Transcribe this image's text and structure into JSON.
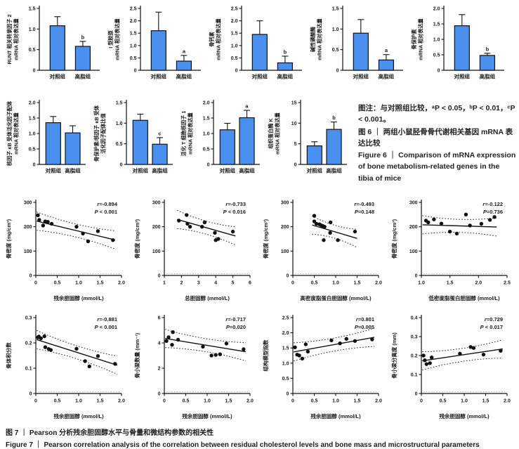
{
  "figure6": {
    "note": "图注：与对照组比较，ᵃP < 0.05，ᵇP < 0.01，ᶜP < 0.001。",
    "caption_zh": "图 6 ｜ 两组小鼠胫骨骨代谢相关基因 mRNA 表达比较",
    "caption_en": "Figure 6 ｜ Comparison of mRNA expression of bone metabolism-related genes in the tibia of mice"
  },
  "figure7": {
    "caption_zh": "图 7 ｜ Pearson 分析残余胆固醇水平与骨量和微结构参数的相关性",
    "caption_en": "Figure 7 ｜ Pearson correlation analysis of the correlation between residual cholesterol levels and bone mass and microstructural parameters"
  },
  "colors": {
    "bar_fill": "#4a90ee",
    "bar_stroke": "#111111",
    "text": "#1a1a1a",
    "line": "#111111"
  },
  "chart_data": [
    {
      "type": "bar",
      "figure": "图6",
      "ylabel_lines": [
        "RUNT 相关转录因子 2",
        "mRNA 相对表达量"
      ],
      "categories": [
        "对照组",
        "高脂组"
      ],
      "values": [
        1.08,
        0.58
      ],
      "errors": [
        0.22,
        0.12
      ],
      "sig": [
        "",
        "b"
      ],
      "ylim": [
        0,
        1.5
      ],
      "yticks": [
        "0",
        "0.5",
        "1.0",
        "1.5"
      ]
    },
    {
      "type": "bar",
      "figure": "图6",
      "ylabel_lines": [
        "I 型胶原",
        "mRNA 相对表达量"
      ],
      "categories": [
        "对照组",
        "高脂组"
      ],
      "values": [
        1.6,
        0.37
      ],
      "errors": [
        0.75,
        0.23
      ],
      "sig": [
        "",
        "a"
      ],
      "ylim": [
        0,
        2.5
      ],
      "yticks": [
        "0",
        "0.5",
        "1.0",
        "1.5",
        "2.0",
        "2.5"
      ]
    },
    {
      "type": "bar",
      "figure": "图6",
      "ylabel_lines": [
        "骨钙素",
        "mRNA 相对表达量"
      ],
      "categories": [
        "对照组",
        "高脂组"
      ],
      "values": [
        1.45,
        0.3
      ],
      "errors": [
        0.55,
        0.27
      ],
      "sig": [
        "",
        "b"
      ],
      "ylim": [
        0,
        2.5
      ],
      "yticks": [
        "0",
        "0.5",
        "1.0",
        "1.5",
        "2.0",
        "2.5"
      ]
    },
    {
      "type": "bar",
      "figure": "图6",
      "ylabel_lines": [
        "碱性磷酸酶",
        "mRNA 相对表达量"
      ],
      "categories": [
        "对照组",
        "高脂组"
      ],
      "values": [
        0.9,
        0.25
      ],
      "errors": [
        0.33,
        0.13
      ],
      "sig": [
        "",
        "a"
      ],
      "ylim": [
        0,
        1.5
      ],
      "yticks": [
        "0",
        "0.5",
        "1.0",
        "1.5"
      ]
    },
    {
      "type": "bar",
      "figure": "图6",
      "ylabel_lines": [
        "骨保护素",
        "mRNA 相对表达量"
      ],
      "categories": [
        "对照组",
        "高脂组"
      ],
      "values": [
        1.44,
        0.48
      ],
      "errors": [
        0.36,
        0.07
      ],
      "sig": [
        "",
        "b"
      ],
      "ylim": [
        0,
        2.0
      ],
      "yticks": [
        "0",
        "0.5",
        "1.0",
        "1.5",
        "2.0"
      ]
    },
    {
      "type": "bar",
      "figure": "图6",
      "ylabel_lines": [
        "核因子 κB 受体活化因子配体",
        "mRNA 相对表达量"
      ],
      "categories": [
        "对照组",
        "高脂组"
      ],
      "values": [
        1.35,
        1.02
      ],
      "errors": [
        0.2,
        0.23
      ],
      "sig": [
        "",
        ""
      ],
      "ylim": [
        0,
        2.0
      ],
      "yticks": [
        "0",
        "0.5",
        "1.0",
        "1.5",
        "2.0"
      ]
    },
    {
      "type": "bar",
      "figure": "图6",
      "ylabel_lines": [
        "骨保护素/核因子 κB 受体",
        "活化因子配体比值"
      ],
      "categories": [
        "对照组",
        "高脂组"
      ],
      "values": [
        1.07,
        0.49
      ],
      "errors": [
        0.15,
        0.16
      ],
      "sig": [
        "",
        "c"
      ],
      "ylim": [
        0,
        1.5
      ],
      "yticks": [
        "0",
        "0.5",
        "1.0",
        "1.5"
      ]
    },
    {
      "type": "bar",
      "figure": "图6",
      "ylabel_lines": [
        "活化 T 细胞核因子 1",
        "mRNA 相对表达量"
      ],
      "categories": [
        "对照组",
        "高脂组"
      ],
      "values": [
        1.12,
        1.51
      ],
      "errors": [
        0.21,
        0.24
      ],
      "sig": [
        "",
        "a"
      ],
      "ylim": [
        0,
        2.0
      ],
      "yticks": [
        "0",
        "0.5",
        "1.0",
        "1.5",
        "2.0"
      ]
    },
    {
      "type": "bar",
      "figure": "图6",
      "ylabel_lines": [
        "组织蛋白酶 K",
        "mRNA 相对表达量"
      ],
      "categories": [
        "对照组",
        "高脂组"
      ],
      "values": [
        4.5,
        8.5
      ],
      "errors": [
        1.0,
        1.8
      ],
      "sig": [
        "",
        "b"
      ],
      "ylim": [
        0,
        15
      ],
      "yticks": [
        "0",
        "5",
        "10",
        "15"
      ]
    },
    {
      "type": "scatter",
      "figure": "图7",
      "ylabel": "骨密度 (mg/cm³)",
      "xlabel": "残余胆固醇 (mmol/L)",
      "r_label": "r=-0.894",
      "p_label": "P < 0.001",
      "xlim": [
        0,
        2.0
      ],
      "ylim": [
        0,
        300
      ],
      "xticks": [
        "0",
        "0.5",
        "1.0",
        "1.5",
        "2.0"
      ],
      "yticks": [
        "0",
        "100",
        "200",
        "300"
      ],
      "points": [
        [
          0.05,
          247
        ],
        [
          0.08,
          228
        ],
        [
          0.17,
          205
        ],
        [
          0.22,
          222
        ],
        [
          0.28,
          220
        ],
        [
          0.37,
          212
        ],
        [
          0.95,
          200
        ],
        [
          1.1,
          172
        ],
        [
          1.22,
          140
        ],
        [
          1.45,
          182
        ],
        [
          1.8,
          145
        ]
      ],
      "line": {
        "x": [
          0.02,
          1.85
        ],
        "y": [
          223,
          146
        ]
      }
    },
    {
      "type": "scatter",
      "figure": "图7",
      "ylabel": "骨密度 (mg/cm³)",
      "xlabel": "总胆固醇 (mmol/L)",
      "r_label": "r=-0.733",
      "p_label": "P < 0.016",
      "xlim": [
        1,
        6
      ],
      "ylim": [
        0,
        300
      ],
      "xticks": [
        "1",
        "2",
        "3",
        "4",
        "5",
        "6"
      ],
      "yticks": [
        "0",
        "100",
        "200",
        "300"
      ],
      "points": [
        [
          1.85,
          225
        ],
        [
          2.3,
          248
        ],
        [
          2.35,
          212
        ],
        [
          2.5,
          200
        ],
        [
          3.2,
          200
        ],
        [
          3.35,
          218
        ],
        [
          3.95,
          175
        ],
        [
          4.0,
          145
        ],
        [
          4.15,
          150
        ],
        [
          5.0,
          180
        ]
      ],
      "line": {
        "x": [
          1.75,
          5.15
        ],
        "y": [
          230,
          162
        ]
      }
    },
    {
      "type": "scatter",
      "figure": "图7",
      "ylabel": "骨密度 (mg/cm³)",
      "xlabel": "高密度脂蛋白胆固醇 (mmol/L)",
      "r_label": "r=-0.493",
      "p_label": "P=0.148",
      "xlim": [
        0,
        2.0
      ],
      "ylim": [
        0,
        300
      ],
      "xticks": [
        "0",
        "0.5",
        "1.0",
        "1.5",
        "2.0"
      ],
      "yticks": [
        "0",
        "100",
        "200",
        "300"
      ],
      "points": [
        [
          0.5,
          245
        ],
        [
          0.5,
          222
        ],
        [
          0.55,
          212
        ],
        [
          0.62,
          210
        ],
        [
          0.66,
          206
        ],
        [
          0.7,
          203
        ],
        [
          0.74,
          200
        ],
        [
          0.88,
          218
        ],
        [
          0.87,
          175
        ],
        [
          0.72,
          145
        ],
        [
          1.05,
          145
        ],
        [
          1.45,
          180
        ]
      ],
      "line": {
        "x": [
          0.45,
          1.5
        ],
        "y": [
          207,
          152
        ]
      }
    },
    {
      "type": "scatter",
      "figure": "图7",
      "ylabel": "骨密度 (mg/cm³)",
      "xlabel": "低密度脂蛋白胆固醇 (mmol/L)",
      "r_label": "r=-0.122",
      "p_label": "P=0.736",
      "xlim": [
        1.0,
        2.5
      ],
      "ylim": [
        0,
        300
      ],
      "xticks": [
        "1.0",
        "1.5",
        "2.0",
        "2.5"
      ],
      "yticks": [
        "0",
        "100",
        "200",
        "300"
      ],
      "points": [
        [
          1.08,
          225
        ],
        [
          1.12,
          218
        ],
        [
          1.22,
          230
        ],
        [
          1.35,
          213
        ],
        [
          1.5,
          180
        ],
        [
          1.62,
          172
        ],
        [
          1.78,
          250
        ],
        [
          1.85,
          205
        ],
        [
          2.05,
          212
        ],
        [
          2.2,
          228
        ],
        [
          2.28,
          240
        ]
      ],
      "line": {
        "x": [
          1.02,
          2.32
        ],
        "y": [
          208,
          199
        ]
      }
    },
    {
      "type": "scatter",
      "figure": "图7",
      "ylabel": "骨体积分数",
      "xlabel": "残余胆固醇 (mmol/L)",
      "r_label": "r=-0.881",
      "p_label": "P < 0.001",
      "xlim": [
        0,
        2.0
      ],
      "ylim": [
        0,
        0.3
      ],
      "xticks": [
        "0",
        "0.5",
        "1.0",
        "1.5",
        "2.0"
      ],
      "yticks": [
        "0",
        "0.1",
        "0.2",
        "0.3"
      ],
      "points": [
        [
          0.05,
          0.222
        ],
        [
          0.07,
          0.225
        ],
        [
          0.12,
          0.218
        ],
        [
          0.2,
          0.226
        ],
        [
          0.22,
          0.183
        ],
        [
          0.3,
          0.176
        ],
        [
          0.35,
          0.172
        ],
        [
          0.95,
          0.177
        ],
        [
          1.15,
          0.128
        ],
        [
          1.25,
          0.107
        ],
        [
          1.45,
          0.148
        ],
        [
          1.85,
          0.117
        ]
      ],
      "line": {
        "x": [
          0.02,
          1.9
        ],
        "y": [
          0.213,
          0.112
        ]
      }
    },
    {
      "type": "scatter",
      "figure": "图7",
      "ylabel": "骨小梁数量 (mm⁻¹)",
      "xlabel": "残余胆固醇 (mmol/L)",
      "r_label": "r=-0.717",
      "p_label": "P=0.020",
      "xlim": [
        0,
        2.0
      ],
      "ylim": [
        0,
        6
      ],
      "xticks": [
        "0",
        "0.5",
        "1.0",
        "1.5",
        "2.0"
      ],
      "yticks": [
        "0",
        "2",
        "4",
        "6"
      ],
      "points": [
        [
          0.05,
          4.15
        ],
        [
          0.1,
          4.45
        ],
        [
          0.2,
          4.85
        ],
        [
          0.18,
          3.85
        ],
        [
          0.32,
          4.25
        ],
        [
          0.9,
          3.7
        ],
        [
          1.1,
          3.0
        ],
        [
          1.2,
          3.05
        ],
        [
          1.3,
          3.1
        ],
        [
          1.45,
          3.95
        ],
        [
          1.85,
          3.5
        ]
      ],
      "line": {
        "x": [
          0.02,
          1.9
        ],
        "y": [
          4.35,
          3.3
        ]
      }
    },
    {
      "type": "scatter",
      "figure": "图7",
      "ylabel": "结构模型指数",
      "xlabel": "残余胆固醇 (mmol/L)",
      "r_label": "r=0.801",
      "p_label": "P=0.005",
      "xlim": [
        0,
        2.0
      ],
      "ylim": [
        0,
        2.5
      ],
      "xticks": [
        "0",
        "0.5",
        "1.0",
        "1.5",
        "2.0"
      ],
      "yticks": [
        "0",
        "0.5",
        "1.0",
        "1.5",
        "2.0",
        "2.5"
      ],
      "points": [
        [
          0.05,
          1.52
        ],
        [
          0.1,
          1.28
        ],
        [
          0.15,
          1.25
        ],
        [
          0.22,
          1.15
        ],
        [
          0.3,
          1.62
        ],
        [
          0.35,
          1.38
        ],
        [
          0.9,
          1.75
        ],
        [
          1.1,
          1.65
        ],
        [
          1.25,
          1.8
        ],
        [
          1.45,
          1.73
        ],
        [
          1.85,
          1.78
        ]
      ],
      "line": {
        "x": [
          0.02,
          1.9
        ],
        "y": [
          1.37,
          1.85
        ]
      }
    },
    {
      "type": "scatter",
      "figure": "图7",
      "ylabel": "骨小梁分离度 (mm)",
      "xlabel": "残余胆固醇 (mmol/L)",
      "r_label": "r=0.729",
      "p_label": "P < 0.017",
      "xlim": [
        0,
        2.0
      ],
      "ylim": [
        0,
        0.4
      ],
      "xticks": [
        "0",
        "0.5",
        "1.0",
        "1.5",
        "2.0"
      ],
      "yticks": [
        "0",
        "0.1",
        "0.2",
        "0.3",
        "0.4"
      ],
      "points": [
        [
          0.05,
          0.2
        ],
        [
          0.08,
          0.175
        ],
        [
          0.12,
          0.155
        ],
        [
          0.2,
          0.16
        ],
        [
          0.24,
          0.19
        ],
        [
          0.9,
          0.21
        ],
        [
          1.15,
          0.245
        ],
        [
          1.22,
          0.24
        ],
        [
          1.45,
          0.205
        ],
        [
          1.85,
          0.225
        ]
      ],
      "line": {
        "x": [
          0.02,
          1.9
        ],
        "y": [
          0.172,
          0.235
        ]
      }
    }
  ]
}
